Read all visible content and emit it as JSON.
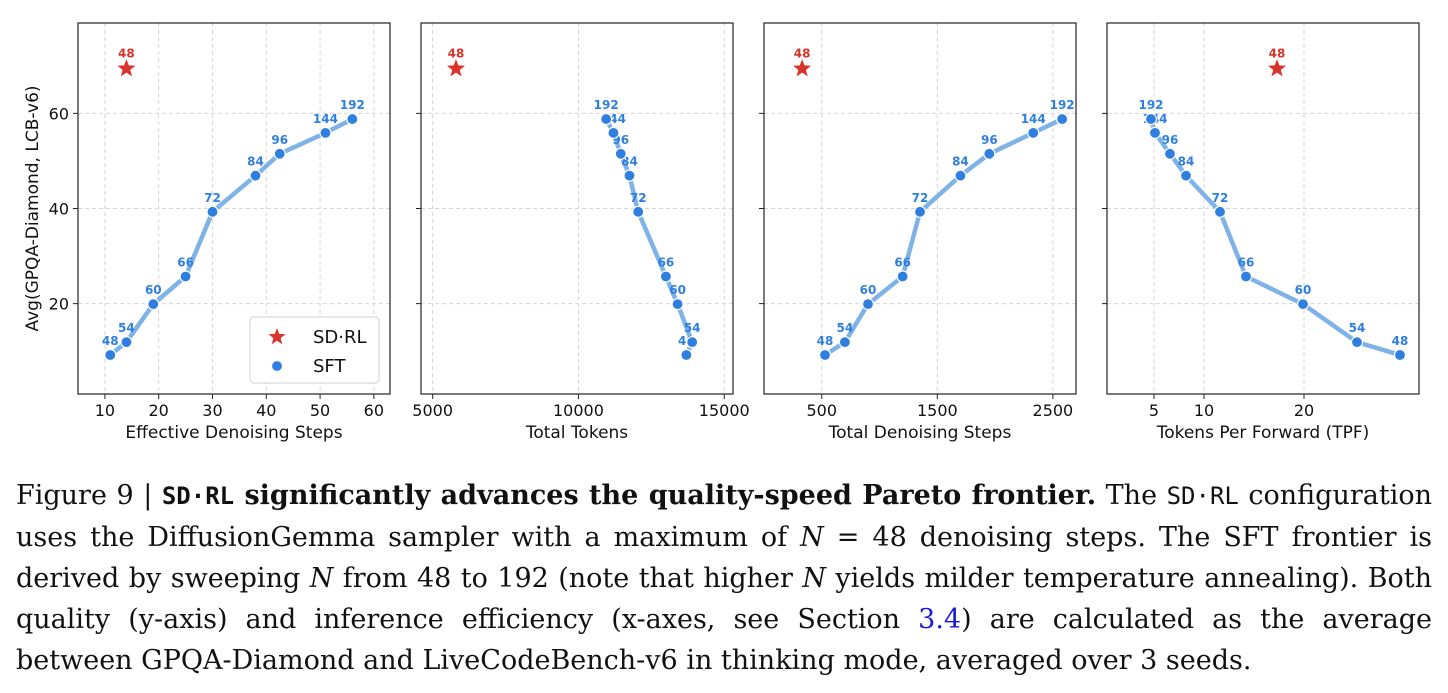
{
  "chart_data": [
    {
      "type": "line",
      "xlabel": "Effective Denoising Steps",
      "ylabel": "Avg(GPQA-Diamond, LCB-v6)",
      "xlim": [
        5,
        63
      ],
      "ylim": [
        1,
        79
      ],
      "xticks": [
        10,
        20,
        30,
        40,
        50,
        60
      ],
      "yticks": [
        20,
        40,
        60
      ],
      "grid": true,
      "legend": {
        "placement": "lower-right",
        "entries": [
          "SD·RL",
          "SFT"
        ]
      },
      "series": [
        {
          "name": "SFT",
          "x": [
            11,
            14,
            19,
            25,
            30,
            38,
            42.5,
            51,
            56
          ],
          "y": [
            9.2,
            11.9,
            19.9,
            25.7,
            39.3,
            46.9,
            51.5,
            55.9,
            58.8
          ],
          "labels": [
            "48",
            "54",
            "60",
            "66",
            "72",
            "84",
            "96",
            "144",
            "192"
          ]
        },
        {
          "name": "SD·RL",
          "x": [
            14
          ],
          "y": [
            69.4
          ],
          "labels": [
            "48"
          ]
        }
      ]
    },
    {
      "type": "line",
      "xlabel": "Total Tokens",
      "ylabel": "",
      "xlim": [
        4600,
        15300
      ],
      "ylim": [
        1,
        79
      ],
      "xticks": [
        5000,
        10000,
        15000
      ],
      "yticks": [
        20,
        40,
        60
      ],
      "grid": true,
      "series": [
        {
          "name": "SFT",
          "x": [
            13700,
            13900,
            13400,
            13000,
            12050,
            11750,
            11450,
            11200,
            10950
          ],
          "y": [
            9.2,
            11.9,
            19.9,
            25.7,
            39.3,
            46.9,
            51.5,
            55.9,
            58.8
          ],
          "labels": [
            "48",
            "54",
            "60",
            "66",
            "72",
            "84",
            "96",
            "144",
            "192"
          ]
        },
        {
          "name": "SD·RL",
          "x": [
            5800
          ],
          "y": [
            69.4
          ],
          "labels": [
            "48"
          ]
        }
      ]
    },
    {
      "type": "line",
      "xlabel": "Total Denoising Steps",
      "ylabel": "",
      "xlim": [
        0,
        2700
      ],
      "ylim": [
        1,
        79
      ],
      "xticks": [
        500,
        1500,
        2500
      ],
      "tick_labels": [
        "500",
        "1500",
        "2500"
      ],
      "yticks": [
        20,
        40,
        60
      ],
      "grid": true,
      "series": [
        {
          "name": "SFT",
          "x": [
            528,
            700,
            900,
            1200,
            1350,
            1700,
            1950,
            2330,
            2580
          ],
          "y": [
            9.2,
            11.9,
            19.9,
            25.7,
            39.3,
            46.9,
            51.5,
            55.9,
            58.8
          ],
          "labels": [
            "48",
            "54",
            "60",
            "66",
            "72",
            "84",
            "96",
            "144",
            "192"
          ]
        },
        {
          "name": "SD·RL",
          "x": [
            330
          ],
          "y": [
            69.4
          ],
          "labels": [
            "48"
          ]
        }
      ]
    },
    {
      "type": "line",
      "xlabel": "Tokens Per Forward (TPF)",
      "ylabel": "",
      "xlim": [
        0.3,
        31.5
      ],
      "ylim": [
        1,
        79
      ],
      "xticks": [
        5,
        10,
        20
      ],
      "yticks": [
        20,
        40,
        60
      ],
      "grid": true,
      "series": [
        {
          "name": "SFT",
          "x": [
            29.6,
            25.3,
            19.9,
            14.2,
            11.6,
            8.2,
            6.6,
            5.1,
            4.7
          ],
          "y": [
            9.2,
            11.9,
            19.9,
            25.7,
            39.3,
            46.9,
            51.5,
            55.9,
            58.8
          ],
          "labels": [
            "48",
            "54",
            "60",
            "66",
            "72",
            "84",
            "96",
            "144",
            "192"
          ]
        },
        {
          "name": "SD·RL",
          "x": [
            17.3
          ],
          "y": [
            69.4
          ],
          "labels": [
            "48"
          ]
        }
      ]
    }
  ],
  "colors": {
    "sft_line": "#7fb3e8",
    "sft_point": "#2f7fe0",
    "sft_label": "#2f7fe0",
    "sdrl": "#d9342b",
    "grid": "#d6d6d6"
  },
  "caption": {
    "figure_label": "Figure 9 | ",
    "method_name": "SD·RL",
    "title_rest": " significantly advances the quality-speed Pareto frontier.",
    "t1": " The ",
    "method_name_2": "SD·RL",
    "t2": " configuration uses the DiffusionGemma sampler with a maximum of ",
    "var_n": "N",
    "t3": " = 48 denoising steps. The SFT frontier is derived by sweeping ",
    "var_n_2": "N",
    "t4": " from 48 to 192 (note that higher ",
    "var_n_3": "N",
    "t5": " yields milder temperature annealing). Both quality (y-axis) and inference efficiency (x-axes, see Section ",
    "section_ref": "3.4",
    "t6": ") are calculated as the average between GPQA-Diamond and LiveCodeBench-v6 in thinking mode, averaged over 3 seeds."
  }
}
